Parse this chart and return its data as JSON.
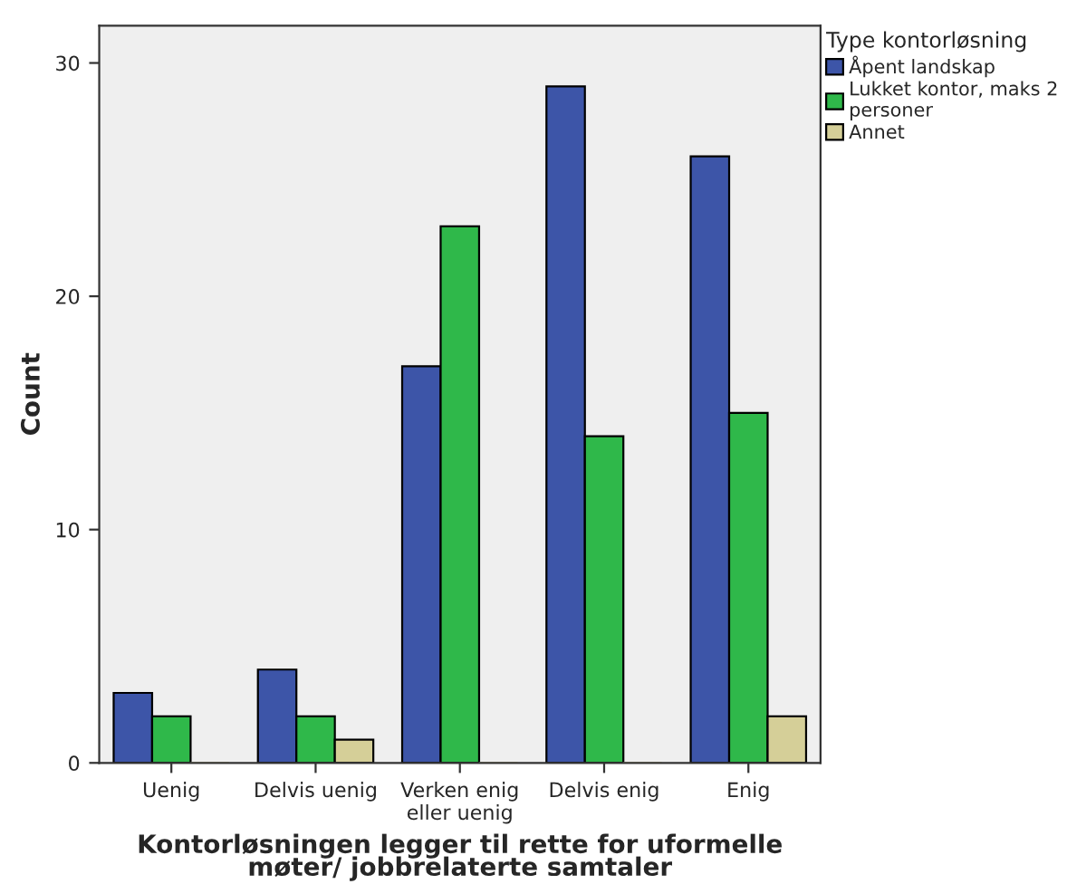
{
  "chart_data": {
    "type": "bar",
    "xlabel": "Kontorløsningen legger til rette for uformelle\nmøter/ jobbrelaterte samtaler",
    "ylabel": "Count",
    "legend_title": "Type kontorløsning",
    "categories": [
      "Uenig",
      "Delvis uenig",
      "Verken enig\neller uenig",
      "Delvis enig",
      "Enig"
    ],
    "series": [
      {
        "name": "Åpent landskap",
        "color": "#3d55a8",
        "values": [
          3,
          4,
          17,
          29,
          26
        ]
      },
      {
        "name": "Lukket kontor, maks 2\npersoner",
        "color": "#2fb84a",
        "values": [
          2,
          2,
          23,
          14,
          15
        ]
      },
      {
        "name": "Annet",
        "color": "#d5cf98",
        "values": [
          0,
          1,
          0,
          0,
          2
        ]
      }
    ],
    "ylim": [
      0,
      31.6
    ],
    "yticks": [
      0,
      10,
      20,
      30
    ],
    "grid": false,
    "legend": "top right"
  }
}
